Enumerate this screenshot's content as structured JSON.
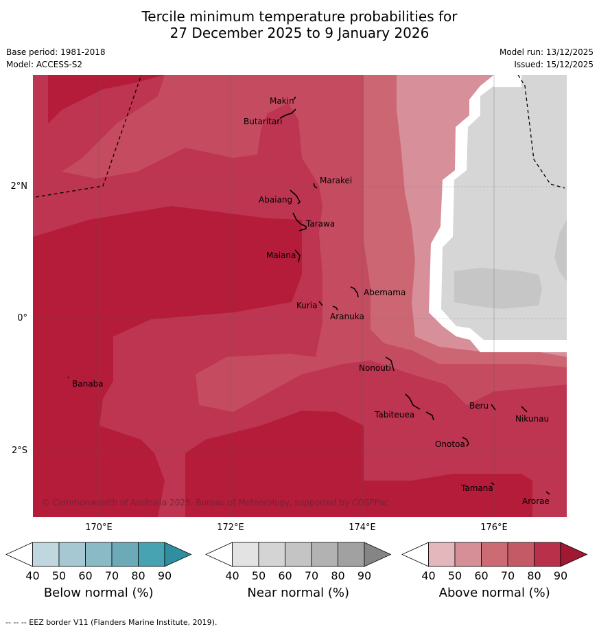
{
  "title_line1": "Tercile minimum temperature probabilities for",
  "title_line2": "27 December 2025 to 9 January 2026",
  "meta": {
    "base_period": "Base period: 1981-2018",
    "model": "Model: ACCESS-S2",
    "model_run": "Model run: 13/12/2025",
    "issued": "Issued: 15/12/2025"
  },
  "map": {
    "lat_labels": [
      "2°N",
      "0°",
      "2°S"
    ],
    "lon_labels": [
      "170°E",
      "172°E",
      "174°E",
      "176°E"
    ],
    "places": [
      "Makin",
      "Butaritari",
      "Marakei",
      "Abaiang",
      "Tarawa",
      "Maiana",
      "Abemama",
      "Kuria",
      "Aranuka",
      "Nonouti",
      "Banaba",
      "Beru",
      "Nikunau",
      "Tabiteuea",
      "Onotoa",
      "Tamana",
      "Arorae"
    ],
    "credit": "© Commonwealth of Australia 2025, Bureau of Meteorology, supported by COSPPac"
  },
  "colorbars": [
    {
      "title": "Below normal (%)",
      "ticks": [
        "40",
        "50",
        "60",
        "70",
        "80",
        "90"
      ],
      "colors": [
        "#ffffff",
        "#c1d7df",
        "#a6c8d2",
        "#8abac6",
        "#6caab8",
        "#47a3b2",
        "#2f8ea0"
      ]
    },
    {
      "title": "Near normal (%)",
      "ticks": [
        "40",
        "50",
        "60",
        "70",
        "80",
        "90"
      ],
      "colors": [
        "#ffffff",
        "#e3e3e3",
        "#d4d4d4",
        "#c4c4c4",
        "#b2b2b2",
        "#a1a1a1",
        "#858585"
      ]
    },
    {
      "title": "Above normal (%)",
      "ticks": [
        "40",
        "50",
        "60",
        "70",
        "80",
        "90"
      ],
      "colors": [
        "#ffffff",
        "#e4b7bd",
        "#d78f97",
        "#cd6b74",
        "#c45a66",
        "#b8304a",
        "#a11833"
      ]
    }
  ],
  "footer": "--  --  -- EEZ border V11 (Flanders Marine Institute, 2019)."
}
